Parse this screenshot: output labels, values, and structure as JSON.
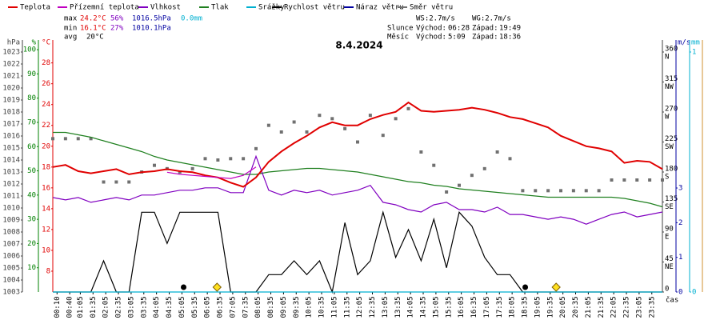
{
  "chart_data": {
    "type": "line",
    "title": "8.4.2024",
    "x_label": "čas",
    "xlim": [
      0,
      24
    ],
    "xticks": [
      {
        "value": 0.1667,
        "label": "00:10"
      },
      {
        "value": 0.6667,
        "label": "00:40"
      },
      {
        "value": 1.0833,
        "label": "01:05"
      },
      {
        "value": 1.5833,
        "label": "01:35"
      },
      {
        "value": 2.0833,
        "label": "02:05"
      },
      {
        "value": 2.5833,
        "label": "02:35"
      },
      {
        "value": 3.0833,
        "label": "03:05"
      },
      {
        "value": 3.5833,
        "label": "03:35"
      },
      {
        "value": 4.0833,
        "label": "04:05"
      },
      {
        "value": 4.5833,
        "label": "04:35"
      },
      {
        "value": 5.0833,
        "label": "05:05"
      },
      {
        "value": 5.5833,
        "label": "05:35"
      },
      {
        "value": 6.0833,
        "label": "06:05"
      },
      {
        "value": 6.5833,
        "label": "06:35"
      },
      {
        "value": 7.0833,
        "label": "07:05"
      },
      {
        "value": 7.5833,
        "label": "07:35"
      },
      {
        "value": 8.0833,
        "label": "08:05"
      },
      {
        "value": 8.5833,
        "label": "08:35"
      },
      {
        "value": 9.0833,
        "label": "09:05"
      },
      {
        "value": 9.5833,
        "label": "09:35"
      },
      {
        "value": 10.0833,
        "label": "10:05"
      },
      {
        "value": 10.5833,
        "label": "10:35"
      },
      {
        "value": 11.0833,
        "label": "11:05"
      },
      {
        "value": 11.5833,
        "label": "11:35"
      },
      {
        "value": 12.0833,
        "label": "12:05"
      },
      {
        "value": 12.5833,
        "label": "12:35"
      },
      {
        "value": 13.0833,
        "label": "13:05"
      },
      {
        "value": 13.5833,
        "label": "13:35"
      },
      {
        "value": 14.0833,
        "label": "14:05"
      },
      {
        "value": 14.5833,
        "label": "14:35"
      },
      {
        "value": 15.0833,
        "label": "15:05"
      },
      {
        "value": 15.5833,
        "label": "15:35"
      },
      {
        "value": 16.0833,
        "label": "16:05"
      },
      {
        "value": 16.5833,
        "label": "16:35"
      },
      {
        "value": 17.0833,
        "label": "17:05"
      },
      {
        "value": 17.5833,
        "label": "17:35"
      },
      {
        "value": 18.0833,
        "label": "18:05"
      },
      {
        "value": 18.5833,
        "label": "18:35"
      },
      {
        "value": 19.0833,
        "label": "19:05"
      },
      {
        "value": 19.5833,
        "label": "19:35"
      },
      {
        "value": 20.0833,
        "label": "20:05"
      },
      {
        "value": 20.5833,
        "label": "20:35"
      },
      {
        "value": 21.0833,
        "label": "21:05"
      },
      {
        "value": 21.5833,
        "label": "21:35"
      },
      {
        "value": 22.0833,
        "label": "22:05"
      },
      {
        "value": 22.5833,
        "label": "22:35"
      },
      {
        "value": 23.0833,
        "label": "23:05"
      },
      {
        "value": 23.5833,
        "label": "23:35"
      }
    ],
    "x": [
      0,
      0.5,
      1,
      1.5,
      2,
      2.5,
      3,
      3.5,
      4,
      4.5,
      5,
      5.5,
      6,
      6.5,
      7,
      7.5,
      8,
      8.5,
      9,
      9.5,
      10,
      10.5,
      11,
      11.5,
      12,
      12.5,
      13,
      13.5,
      14,
      14.5,
      15,
      15.5,
      16,
      16.5,
      17,
      17.5,
      18,
      18.5,
      19,
      19.5,
      20,
      20.5,
      21,
      21.5,
      22,
      22.5,
      23,
      23.5,
      24
    ],
    "axes": {
      "pres": {
        "label": "hPa",
        "color": "#404040",
        "lim": [
          1003,
          1024
        ],
        "ticks": [
          1003,
          1004,
          1005,
          1006,
          1007,
          1008,
          1009,
          1010,
          1011,
          1012,
          1013,
          1014,
          1015,
          1016,
          1017,
          1018,
          1019,
          1020,
          1021,
          1022,
          1023
        ]
      },
      "hum": {
        "label": "%",
        "color": "#008000",
        "lim": [
          0,
          104
        ],
        "ticks": [
          10,
          20,
          30,
          40,
          50,
          60,
          70,
          80,
          90,
          100
        ]
      },
      "temp": {
        "label": "°C",
        "color": "#e00000",
        "lim": [
          6,
          30.2
        ],
        "ticks": [
          8,
          10,
          12,
          14,
          16,
          18,
          20,
          22,
          24,
          26,
          28
        ]
      },
      "dir": {
        "color": "#404040",
        "lim": [
          0,
          378
        ],
        "ticks": [
          0,
          45,
          90,
          135,
          180,
          225,
          270,
          315,
          360
        ],
        "compass": [
          null,
          "NE",
          "E",
          "SE",
          "S",
          "SW",
          "W",
          "NW",
          "N"
        ]
      },
      "wind": {
        "label": "m/s",
        "color": "#0000a0",
        "lim": [
          0,
          7.27
        ],
        "ticks": [
          0,
          1,
          2,
          3
        ]
      },
      "rain": {
        "label": "mm",
        "color": "#00b0d0",
        "lim": [
          0,
          1.05
        ],
        "ticks": [
          0,
          1
        ]
      }
    },
    "series": [
      {
        "name": "Teplota",
        "color": "#e00000",
        "axis": "temp",
        "values": [
          18.0,
          18.2,
          17.6,
          17.4,
          17.6,
          17.8,
          17.3,
          17.5,
          17.6,
          17.8,
          17.6,
          17.5,
          17.2,
          17.0,
          16.5,
          16.1,
          17.0,
          18.5,
          19.5,
          20.3,
          21.0,
          21.8,
          22.3,
          22.0,
          22.0,
          22.6,
          23.0,
          23.3,
          24.2,
          23.4,
          23.3,
          23.4,
          23.5,
          23.7,
          23.5,
          23.2,
          22.8,
          22.6,
          22.2,
          21.8,
          21.0,
          20.5,
          20.0,
          19.8,
          19.5,
          18.4,
          18.6,
          18.5,
          17.8
        ]
      },
      {
        "name": "Přízemní teplota",
        "color": "#c000c0",
        "axis": "temp",
        "values": [
          null,
          null,
          null,
          null,
          null,
          null,
          null,
          null,
          null,
          17.5,
          17.3,
          17.2,
          17.1,
          17.0,
          16.9,
          17.2,
          18.0,
          null,
          null,
          null,
          null,
          null,
          null,
          null,
          null,
          null,
          null,
          null,
          null,
          null,
          null,
          null,
          null,
          null,
          null,
          null,
          null,
          null,
          null,
          null,
          null,
          null,
          null,
          null,
          null,
          null,
          null,
          null,
          null
        ]
      },
      {
        "name": "Vlhkost",
        "color": "#8000c0",
        "axis": "hum",
        "values": [
          39,
          38,
          39,
          37,
          38,
          39,
          38,
          40,
          40,
          41,
          42,
          42,
          43,
          43,
          41,
          41,
          56,
          42,
          40,
          42,
          41,
          42,
          40,
          41,
          42,
          44,
          37,
          36,
          34,
          33,
          36,
          37,
          34,
          34,
          33,
          35,
          32,
          32,
          31,
          30,
          31,
          30,
          28,
          30,
          32,
          33,
          31,
          32,
          33
        ]
      },
      {
        "name": "Tlak",
        "color": "#208020",
        "axis": "pres",
        "values": [
          1016.3,
          1016.3,
          1016.1,
          1015.9,
          1015.6,
          1015.3,
          1015.0,
          1014.7,
          1014.3,
          1014.0,
          1013.8,
          1013.6,
          1013.4,
          1013.2,
          1013.0,
          1012.8,
          1012.8,
          1013.0,
          1013.1,
          1013.2,
          1013.3,
          1013.3,
          1013.2,
          1013.1,
          1013.0,
          1012.8,
          1012.6,
          1012.4,
          1012.2,
          1012.1,
          1011.9,
          1011.8,
          1011.6,
          1011.5,
          1011.4,
          1011.3,
          1011.2,
          1011.1,
          1011.0,
          1010.9,
          1010.9,
          1010.9,
          1010.9,
          1010.9,
          1010.9,
          1010.8,
          1010.6,
          1010.4,
          1010.1
        ]
      },
      {
        "name": "Srážky",
        "color": "#00b0d0",
        "axis": "rain",
        "values": [
          0,
          0,
          0,
          0,
          0,
          0,
          0,
          0,
          0,
          0,
          0,
          0,
          0,
          0,
          0,
          0,
          0,
          0,
          0,
          0,
          0,
          0,
          0,
          0,
          0,
          0,
          0,
          0,
          0,
          0,
          0,
          0,
          0,
          0,
          0,
          0,
          0,
          0,
          0,
          0,
          0,
          0,
          0,
          0,
          0,
          0,
          0,
          0,
          0
        ]
      },
      {
        "name": "Rychlost větru",
        "color": "#000000",
        "axis": "wind",
        "values": [
          0,
          0,
          0,
          0,
          0.9,
          0,
          0,
          2.3,
          2.3,
          1.4,
          2.3,
          2.3,
          2.3,
          2.3,
          0,
          0,
          0,
          0.5,
          0.5,
          0.9,
          0.5,
          0.9,
          0,
          2.0,
          0.5,
          0.9,
          2.3,
          1.0,
          1.8,
          0.9,
          2.1,
          0.7,
          2.3,
          1.9,
          1.0,
          0.5,
          0.5,
          0,
          0,
          0,
          0,
          0,
          0,
          0,
          0,
          0,
          0,
          0,
          0
        ]
      },
      {
        "name": "Náraz větru",
        "color": "#0000a0",
        "axis": "wind",
        "values": [
          null,
          null,
          null,
          null,
          null,
          null,
          null,
          null,
          null,
          null,
          null,
          null,
          null,
          null,
          null,
          null,
          null,
          null,
          null,
          null,
          null,
          null,
          null,
          null,
          null,
          null,
          null,
          null,
          null,
          null,
          null,
          null,
          null,
          null,
          null,
          null,
          null,
          null,
          null,
          null,
          null,
          null,
          null,
          null,
          null,
          null,
          null,
          null,
          null
        ]
      },
      {
        "name": "Směr větru",
        "color": "#707070",
        "axis": "dir",
        "style": "points",
        "values": [
          230,
          230,
          230,
          230,
          165,
          165,
          165,
          180,
          190,
          185,
          180,
          185,
          200,
          198,
          200,
          200,
          215,
          250,
          240,
          255,
          240,
          265,
          260,
          245,
          225,
          265,
          235,
          260,
          275,
          210,
          190,
          150,
          160,
          175,
          185,
          210,
          200,
          152,
          152,
          152,
          152,
          152,
          152,
          152,
          168,
          168,
          168,
          168,
          168
        ]
      }
    ]
  },
  "stats": {
    "rows": [
      {
        "label": "max",
        "temp": "24.2°C",
        "hum": "56%",
        "pres": "1016.5hPa",
        "rain": "0.0mm"
      },
      {
        "label": "min",
        "temp": "16.1°C",
        "hum": "27%",
        "pres": "1010.1hPa"
      },
      {
        "label": "avg",
        "temp": "20°C"
      }
    ],
    "ws": "WS:2.7m/s",
    "wg": "WG:2.7m/s",
    "sun": {
      "label": "Slunce",
      "rise_label": "Východ:",
      "rise": "06:28",
      "set_label": "Západ:",
      "set": "19:49"
    },
    "moon": {
      "label": "Měsíc",
      "rise_label": "Východ:",
      "rise": "5:09",
      "set_label": "Západ:",
      "set": "18:36"
    }
  }
}
